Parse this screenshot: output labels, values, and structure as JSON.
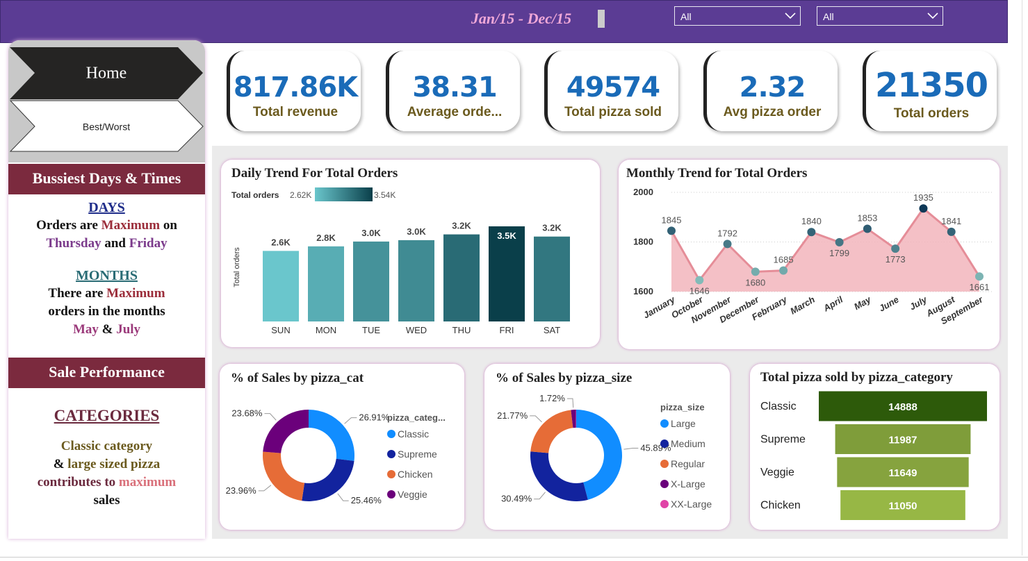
{
  "header": {
    "subtitle": "Jan/15 - Dec/15",
    "filters": [
      "All",
      "All"
    ]
  },
  "nav": [
    "Home",
    "Best/Worst"
  ],
  "sidebar": {
    "sections": [
      {
        "heading": "Bussiest Days & Times",
        "blocks": [
          {
            "title": "DAYS",
            "text": [
              "Orders are",
              "Maximum",
              "on",
              "Thursday",
              "and",
              "Friday"
            ]
          },
          {
            "title": "MONTHS",
            "text": [
              "There are",
              "Maximum",
              "orders in the months",
              "May",
              "&",
              "July"
            ]
          }
        ]
      },
      {
        "heading": "Sale Performance",
        "blocks": [
          {
            "title": "CATEGORIES",
            "text": [
              "Classic category",
              "&",
              "large sized pizza",
              "contributes to",
              "maximum",
              "sales"
            ]
          }
        ]
      }
    ]
  },
  "kpis": [
    {
      "value": "817.86K",
      "label": "Total revenue"
    },
    {
      "value": "38.31",
      "label": "Average orde..."
    },
    {
      "value": "49574",
      "label": "Total pizza sold"
    },
    {
      "value": "2.32",
      "label": "Avg pizza order"
    },
    {
      "value": "21350",
      "label": "Total orders"
    }
  ],
  "chart_data": [
    {
      "type": "bar",
      "title": "Daily Trend For Total Orders",
      "y_label": "Total orders",
      "categories": [
        "SUN",
        "MON",
        "TUE",
        "WED",
        "THU",
        "FRI",
        "SAT"
      ],
      "values": [
        2624,
        2794,
        2973,
        3024,
        3239,
        3538,
        3158
      ],
      "value_labels": [
        "2.6K",
        "2.8K",
        "3.0K",
        "3.0K",
        "3.2K",
        "3.5K",
        "3.2K"
      ],
      "color_scale": {
        "title": "Total orders",
        "min": {
          "value": 2624,
          "label": "2.62K"
        },
        "max": {
          "value": 3538,
          "label": "3.54K"
        },
        "colors": [
          "#6ac6cc",
          "#0a3f4a"
        ]
      }
    },
    {
      "type": "line",
      "title": "Monthly Trend for Total Orders",
      "categories": [
        "January",
        "October",
        "November",
        "December",
        "February",
        "March",
        "April",
        "May",
        "June",
        "July",
        "August",
        "September"
      ],
      "values": [
        1845,
        1646,
        1792,
        1680,
        1685,
        1840,
        1799,
        1853,
        1773,
        1935,
        1841,
        1661
      ],
      "ylim": [
        1600,
        2000
      ],
      "yticks": [
        1600,
        1800,
        2000
      ],
      "grid": true,
      "color": "#e58d98",
      "area_color": "#f2b5bc",
      "marker_colors": [
        "#82bbb8",
        "#0e3857"
      ]
    },
    {
      "type": "donut",
      "title": "% of Sales by pizza_cat",
      "legend_title": "pizza_categ...",
      "categories": [
        "Classic",
        "Supreme",
        "Chicken",
        "Veggie"
      ],
      "values": [
        26.91,
        25.46,
        23.96,
        23.68
      ],
      "value_labels": [
        "26.91%",
        "25.46%",
        "23.96%",
        "23.68%"
      ],
      "colors": [
        "#118dff",
        "#12239e",
        "#e66c37",
        "#6b007b"
      ]
    },
    {
      "type": "donut",
      "title": "% of Sales by pizza_size",
      "legend_title": "pizza_size",
      "categories": [
        "Large",
        "Medium",
        "Regular",
        "X-Large",
        "XX-Large"
      ],
      "values": [
        45.89,
        30.49,
        21.77,
        1.72,
        0.12
      ],
      "value_labels": [
        "45.89%",
        "30.49%",
        "21.77%",
        "1.72%",
        null
      ],
      "colors": [
        "#118dff",
        "#12239e",
        "#e66c37",
        "#6b007b",
        "#e044a7"
      ]
    },
    {
      "type": "hbar",
      "title": "Total pizza sold by pizza_category",
      "categories": [
        "Classic",
        "Supreme",
        "Veggie",
        "Chicken"
      ],
      "values": [
        14888,
        11987,
        11649,
        11050
      ],
      "colors": [
        "#2d5a0a",
        "#7f9d3a",
        "#86a33e",
        "#97b745"
      ]
    }
  ]
}
